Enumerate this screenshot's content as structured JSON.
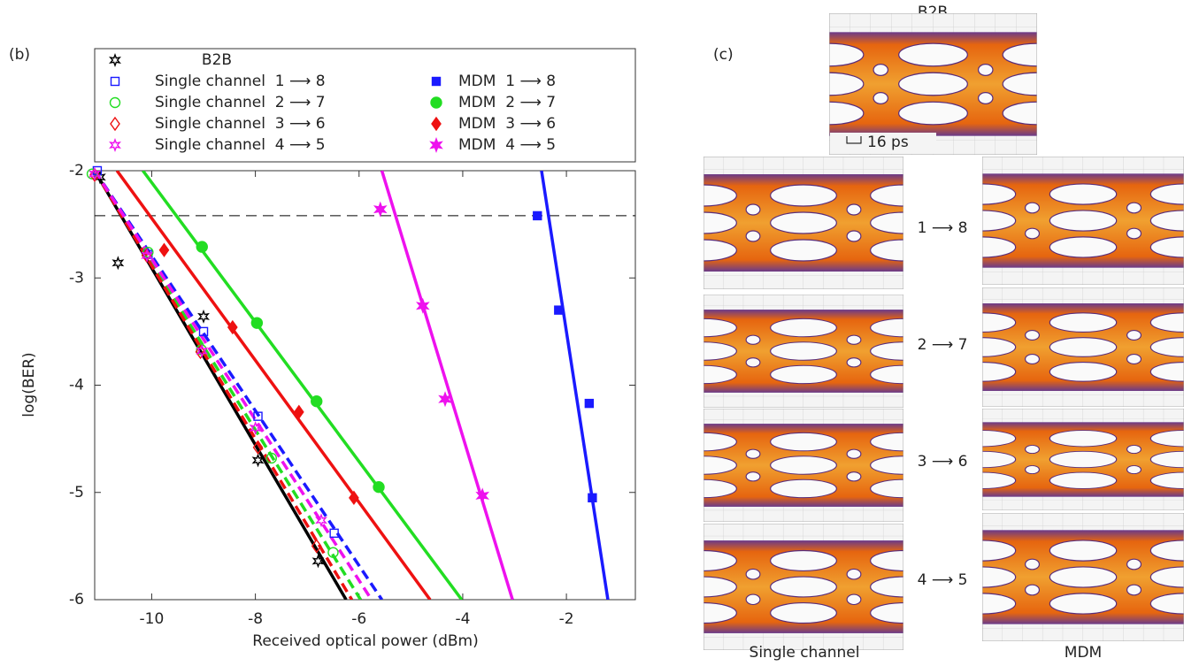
{
  "chart_data": {
    "type": "line",
    "panel_label": "(b)",
    "x_label": "Received optical power (dBm)",
    "y_label": "log(BER)",
    "xlim": [
      -11.1,
      -0.67
    ],
    "ylim": [
      -6,
      -2
    ],
    "xticks": [
      -10,
      -8,
      -6,
      -4,
      -2
    ],
    "yticks": [
      -2,
      -3,
      -4,
      -5,
      -6
    ],
    "threshold": -2.42,
    "series": [
      {
        "name": "B2B",
        "color": "#000000",
        "marker": "star",
        "filled": false,
        "dashed": false,
        "x": [
          -11.0,
          -10.65,
          -9.0,
          -7.95,
          -6.79
        ],
        "values": [
          -2.06,
          -2.86,
          -3.36,
          -4.7,
          -5.64
        ],
        "fit_x": [
          -11.1,
          -6.25
        ],
        "fit_y": [
          -2,
          -6
        ]
      },
      {
        "name": "Single channel  1 ⟶ 8",
        "color": "#1a1aff",
        "marker": "square",
        "filled": false,
        "dashed": true,
        "x": [
          -11.05,
          -10.07,
          -9.0,
          -7.95,
          -6.48
        ],
        "values": [
          -2.0,
          -2.78,
          -3.5,
          -4.29,
          -5.38
        ],
        "fit_x": [
          -11.1,
          -5.56
        ],
        "fit_y": [
          -2,
          -6
        ]
      },
      {
        "name": "Single channel  2 ⟶ 7",
        "color": "#22dd22",
        "marker": "circle",
        "filled": false,
        "dashed": true,
        "x": [
          -11.15,
          -10.07,
          -9.04,
          -7.69,
          -6.5
        ],
        "values": [
          -2.03,
          -2.76,
          -3.67,
          -4.68,
          -5.56
        ],
        "fit_x": [
          -11.1,
          -5.97
        ],
        "fit_y": [
          -2,
          -6
        ]
      },
      {
        "name": "Single channel  3 ⟶ 6",
        "color": "#ee1111",
        "marker": "diamond",
        "filled": false,
        "dashed": true,
        "x": [
          -11.1,
          -10.1,
          -9.06,
          -7.95,
          -6.82
        ],
        "values": [
          -2.04,
          -2.79,
          -3.69,
          -4.58,
          -5.5
        ],
        "fit_x": [
          -11.1,
          -6.14
        ],
        "fit_y": [
          -2,
          -6
        ]
      },
      {
        "name": "Single channel  4 ⟶ 5",
        "color": "#ee11ee",
        "marker": "star",
        "filled": false,
        "dashed": true,
        "x": [
          -11.1,
          -10.09,
          -9.03,
          -8.0,
          -6.73
        ],
        "values": [
          -2.03,
          -2.79,
          -3.68,
          -4.4,
          -5.26
        ],
        "fit_x": [
          -11.1,
          -5.76
        ],
        "fit_y": [
          -2,
          -6
        ]
      },
      {
        "name": "MDM  1 ⟶ 8",
        "color": "#1a1aff",
        "marker": "square",
        "filled": true,
        "dashed": false,
        "x": [
          -2.56,
          -2.15,
          -1.56,
          -1.5
        ],
        "values": [
          -2.42,
          -3.3,
          -4.17,
          -5.05
        ],
        "fit_x": [
          -2.48,
          -1.2
        ],
        "fit_y": [
          -2,
          -6
        ]
      },
      {
        "name": "MDM  2 ⟶ 7",
        "color": "#22dd22",
        "marker": "circle",
        "filled": true,
        "dashed": false,
        "x": [
          -9.03,
          -7.97,
          -6.82,
          -5.62
        ],
        "values": [
          -2.71,
          -3.42,
          -4.15,
          -4.95
        ],
        "fit_x": [
          -10.17,
          -4.02
        ],
        "fit_y": [
          -2,
          -6
        ]
      },
      {
        "name": "MDM  3 ⟶ 6",
        "color": "#ee1111",
        "marker": "diamond",
        "filled": true,
        "dashed": false,
        "x": [
          -9.76,
          -8.44,
          -7.16,
          -6.1
        ],
        "values": [
          -2.74,
          -3.46,
          -4.25,
          -5.05
        ],
        "fit_x": [
          -10.67,
          -4.63
        ],
        "fit_y": [
          -2,
          -6
        ]
      },
      {
        "name": "MDM  4 ⟶ 5",
        "color": "#ee11ee",
        "marker": "star",
        "filled": true,
        "dashed": false,
        "x": [
          -5.59,
          -4.77,
          -4.34,
          -3.62
        ],
        "values": [
          -2.36,
          -3.26,
          -4.13,
          -5.03
        ],
        "fit_x": [
          -5.56,
          -3.04
        ],
        "fit_y": [
          -2,
          -6
        ]
      }
    ]
  },
  "eye_diagrams": {
    "panel_label": "(c)",
    "b2b_title": "B2B",
    "scale_label": "16 ps",
    "pairs": [
      "1 ⟶ 8",
      "2 ⟶ 7",
      "3 ⟶ 6",
      "4 ⟶ 5"
    ],
    "column_labels": [
      "Single channel",
      "MDM"
    ]
  }
}
